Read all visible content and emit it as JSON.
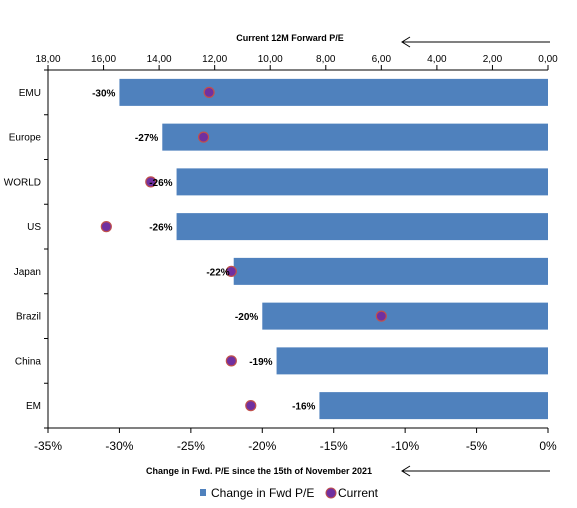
{
  "chart_data": {
    "type": "bar",
    "orientation": "horizontal",
    "categories": [
      "EMU",
      "Europe",
      "WORLD",
      "US",
      "Japan",
      "Brazil",
      "China",
      "EM"
    ],
    "series": [
      {
        "name": "Change in Fwd P/E",
        "axis": "bottom",
        "values": [
          -30,
          -27,
          -26,
          -26,
          -22,
          -20,
          -19,
          -16
        ],
        "data_labels": [
          "-30%",
          "-27%",
          "-26%",
          "-26%",
          "-22%",
          "-20%",
          "-19%",
          "-16%"
        ],
        "color": "#4F81BD"
      },
      {
        "name": "Current",
        "axis": "top",
        "values": [
          12.2,
          12.4,
          14.3,
          15.9,
          11.4,
          6.0,
          11.4,
          10.7
        ],
        "color": "#7030A0",
        "edge_color": "#C0504D"
      }
    ],
    "bottom_axis": {
      "title": "Change in Fwd. P/E since the 15th of November 2021",
      "range": [
        -35,
        0
      ],
      "ticks": [
        -35,
        -30,
        -25,
        -20,
        -15,
        -10,
        -5,
        0
      ],
      "tick_labels": [
        "-35%",
        "-30%",
        "-25%",
        "-20%",
        "-15%",
        "-10%",
        "-5%",
        "0%"
      ]
    },
    "top_axis": {
      "title": "Current 12M Forward P/E",
      "range": [
        18,
        0
      ],
      "reversed": true,
      "ticks": [
        18,
        16,
        14,
        12,
        10,
        8,
        6,
        4,
        2,
        0
      ],
      "tick_labels": [
        "18,00",
        "16,00",
        "14,00",
        "12,00",
        "10,00",
        "8,00",
        "6,00",
        "4,00",
        "2,00",
        "0,00"
      ]
    },
    "legend": {
      "position": "bottom",
      "entries": [
        "Change in Fwd P/E",
        "Current"
      ]
    },
    "grid": false
  }
}
